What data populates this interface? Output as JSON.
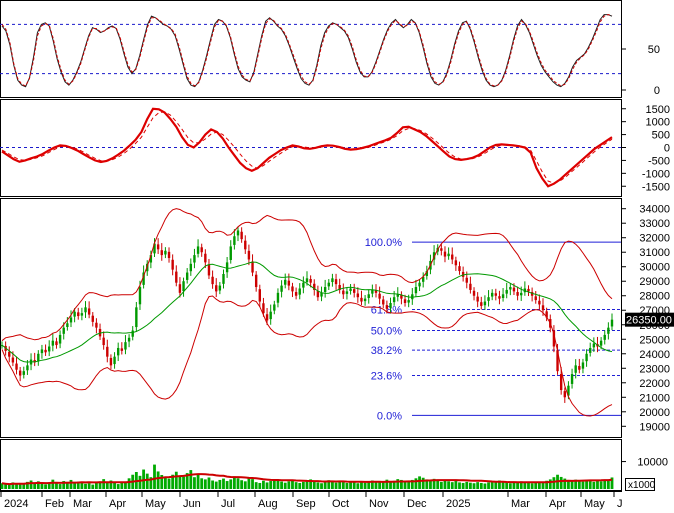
{
  "chart_data": [
    {
      "type": "line",
      "panel": "stochastic",
      "y_ticks": [
        "50",
        "0"
      ],
      "ylim": [
        0,
        100
      ],
      "reference_lines": [
        80,
        20
      ],
      "series": [
        {
          "values": [
            78,
            72,
            55,
            30,
            12,
            6,
            4,
            15,
            40,
            70,
            80,
            82,
            78,
            60,
            38,
            22,
            10,
            6,
            12,
            22,
            34,
            50,
            66,
            76,
            74,
            70,
            72,
            76,
            78,
            75,
            62,
            44,
            28,
            20,
            26,
            42,
            62,
            80,
            90,
            88,
            84,
            80,
            78,
            74,
            66,
            50,
            32,
            14,
            6,
            4,
            10,
            24,
            42,
            62,
            80,
            86,
            84,
            78,
            64,
            44,
            26,
            16,
            12,
            10,
            22,
            44,
            66,
            84,
            88,
            84,
            78,
            74,
            66,
            54,
            40,
            26,
            14,
            8,
            6,
            12,
            30,
            54,
            70,
            78,
            82,
            80,
            76,
            72,
            64,
            50,
            34,
            22,
            16,
            16,
            22,
            34,
            48,
            62,
            74,
            82,
            86,
            80,
            76,
            80,
            86,
            82,
            70,
            52,
            32,
            16,
            8,
            6,
            10,
            20,
            36,
            56,
            72,
            82,
            84,
            74,
            58,
            40,
            24,
            12,
            6,
            4,
            6,
            12,
            24,
            42,
            62,
            78,
            86,
            80,
            70,
            56,
            42,
            30,
            22,
            16,
            10,
            6,
            4,
            8,
            16,
            28,
            36,
            40,
            44,
            52,
            62,
            74,
            86,
            92,
            92,
            90
          ]
        },
        {
          "values": [
            80,
            74,
            58,
            32,
            14,
            7,
            5,
            14,
            36,
            66,
            78,
            81,
            79,
            63,
            41,
            25,
            12,
            7,
            11,
            20,
            32,
            48,
            64,
            75,
            75,
            71,
            72,
            75,
            77,
            76,
            64,
            47,
            31,
            22,
            25,
            39,
            59,
            77,
            88,
            88,
            85,
            81,
            78,
            75,
            68,
            53,
            35,
            17,
            8,
            5,
            9,
            22,
            39,
            59,
            77,
            85,
            84,
            79,
            66,
            47,
            29,
            18,
            13,
            11,
            20,
            41,
            63,
            81,
            87,
            85,
            79,
            75,
            68,
            56,
            43,
            29,
            17,
            10,
            7,
            11,
            27,
            50,
            67,
            76,
            81,
            80,
            77,
            73,
            66,
            53,
            37,
            24,
            17,
            16,
            21,
            32,
            46,
            60,
            72,
            80,
            85,
            81,
            77,
            79,
            84,
            82,
            72,
            55,
            35,
            19,
            10,
            7,
            9,
            18,
            33,
            53,
            69,
            80,
            83,
            76,
            61,
            43,
            27,
            14,
            7,
            5,
            6,
            11,
            22,
            39,
            59,
            75,
            84,
            81,
            72,
            59,
            45,
            33,
            24,
            18,
            12,
            8,
            5,
            7,
            14,
            25,
            34,
            39,
            43,
            50,
            60,
            71,
            83,
            90,
            92,
            91
          ]
        }
      ]
    },
    {
      "type": "line",
      "panel": "macd",
      "y_ticks": [
        "1500",
        "1000",
        "500",
        "0",
        "-500",
        "-1000",
        "-1500"
      ],
      "ylim": [
        -1800,
        1800
      ],
      "series": [
        {
          "values": [
            -150,
            -300,
            -450,
            -550,
            -500,
            -420,
            -350,
            -250,
            -120,
            0,
            80,
            60,
            -20,
            -120,
            -250,
            -380,
            -500,
            -560,
            -520,
            -420,
            -280,
            -120,
            80,
            300,
            600,
            1100,
            1500,
            1480,
            1350,
            1100,
            800,
            400,
            100,
            0,
            200,
            500,
            700,
            600,
            350,
            0,
            -300,
            -600,
            -800,
            -900,
            -800,
            -600,
            -400,
            -250,
            -100,
            0,
            80,
            40,
            -30,
            -50,
            -10,
            50,
            80,
            70,
            20,
            -50,
            -80,
            -60,
            -20,
            40,
            120,
            200,
            280,
            380,
            560,
            780,
            800,
            700,
            600,
            450,
            250,
            50,
            -150,
            -350,
            -450,
            -480,
            -450,
            -400,
            -300,
            -150,
            0,
            100,
            120,
            100,
            80,
            50,
            0,
            -200,
            -800,
            -1200,
            -1500,
            -1400,
            -1250,
            -1050,
            -850,
            -650,
            -450,
            -250,
            -50,
            100,
            250,
            400
          ]
        },
        {
          "values": [
            -100,
            -220,
            -360,
            -470,
            -500,
            -460,
            -400,
            -320,
            -200,
            -80,
            30,
            60,
            20,
            -60,
            -170,
            -300,
            -420,
            -510,
            -530,
            -470,
            -370,
            -230,
            -50,
            160,
            400,
            780,
            1150,
            1350,
            1380,
            1250,
            1000,
            700,
            380,
            180,
            180,
            330,
            520,
            600,
            500,
            280,
            20,
            -260,
            -520,
            -720,
            -800,
            -700,
            -530,
            -370,
            -220,
            -80,
            30,
            50,
            20,
            -10,
            -20,
            20,
            55,
            70,
            40,
            -10,
            -50,
            -60,
            -40,
            0,
            70,
            150,
            230,
            320,
            460,
            650,
            740,
            730,
            660,
            540,
            370,
            180,
            -20,
            -220,
            -370,
            -450,
            -460,
            -430,
            -360,
            -240,
            -100,
            30,
            90,
            100,
            90,
            65,
            25,
            -110,
            -520,
            -950,
            -1300,
            -1380,
            -1300,
            -1150,
            -950,
            -760,
            -560,
            -360,
            -160,
            20,
            170,
            320
          ]
        }
      ]
    },
    {
      "type": "candlestick",
      "panel": "price",
      "last_price_label": "26350.00",
      "ylim": [
        18400,
        34600
      ],
      "y_ticks": [
        34000,
        33000,
        32000,
        31000,
        30000,
        29000,
        28000,
        27000,
        26000,
        25000,
        24000,
        23000,
        22000,
        21000,
        20000,
        19000
      ],
      "fibonacci": [
        {
          "label": "100.0%",
          "value": 31700
        },
        {
          "label": "61.8%",
          "value": 27050
        },
        {
          "label": "50.0%",
          "value": 25600
        },
        {
          "label": "38.2%",
          "value": 24250
        },
        {
          "label": "23.6%",
          "value": 22500
        },
        {
          "label": "0.0%",
          "value": 19750
        }
      ],
      "close": [
        24600,
        24200,
        23800,
        23400,
        22900,
        22500,
        22800,
        23200,
        23600,
        23400,
        24000,
        24300,
        24100,
        24500,
        24900,
        24600,
        25300,
        25800,
        26100,
        26500,
        26900,
        26600,
        26800,
        27200,
        26700,
        26200,
        25800,
        25200,
        24600,
        23800,
        23200,
        23800,
        24400,
        24200,
        24800,
        25100,
        25600,
        27200,
        28600,
        29600,
        30200,
        30800,
        31600,
        31200,
        30800,
        31100,
        30600,
        29800,
        28900,
        28200,
        29000,
        29600,
        30200,
        30800,
        31400,
        31000,
        30300,
        29400,
        28800,
        28300,
        28700,
        29500,
        30300,
        31400,
        32100,
        32500,
        31900,
        31200,
        30500,
        29600,
        28600,
        27600,
        26800,
        26300,
        26900,
        27400,
        28200,
        28700,
        29100,
        28700,
        28300,
        28000,
        28500,
        28900,
        29200,
        28900,
        28400,
        27900,
        28200,
        28600,
        28900,
        29200,
        28800,
        28400,
        28100,
        28300,
        28500,
        28200,
        27900,
        27600,
        27800,
        28100,
        28400,
        28200,
        27800,
        27400,
        27100,
        27500,
        27900,
        28100,
        27800,
        27500,
        27700,
        28100,
        28600,
        28900,
        29300,
        29700,
        30400,
        31000,
        31300,
        31100,
        30700,
        30900,
        30500,
        30100,
        29700,
        29300,
        28900,
        28400,
        28000,
        27600,
        27300,
        27600,
        27900,
        28200,
        28000,
        27800,
        28100,
        28400,
        28600,
        28300,
        28000,
        28200,
        28500,
        28300,
        28000,
        27700,
        27400,
        27000,
        26500,
        25800,
        24500,
        22800,
        21500,
        21000,
        21800,
        22600,
        23200,
        22900,
        23400,
        24000,
        24400,
        24700,
        24500,
        24900,
        25300,
        25800,
        26350
      ]
    },
    {
      "type": "bar",
      "panel": "volume",
      "y_ticks": [
        "10000"
      ],
      "unit_label": "x1000",
      "ylim": [
        0,
        17500
      ],
      "values": [
        2100,
        1800,
        1500,
        2400,
        1700,
        2200,
        1900,
        2600,
        3100,
        2300,
        2800,
        2000,
        1700,
        2500,
        3400,
        2100,
        1800,
        2900,
        2600,
        3300,
        2200,
        2700,
        2400,
        1900,
        2100,
        1600,
        2300,
        2800,
        3600,
        2500,
        3100,
        2200,
        1800,
        2400,
        2700,
        3900,
        5200,
        6200,
        4800,
        7100,
        5600,
        4300,
        8900,
        6400,
        5100,
        4400,
        3800,
        5200,
        6300,
        4800,
        4500,
        5800,
        6900,
        4300,
        5500,
        3900,
        3500,
        4200,
        3100,
        2700,
        3300,
        3800,
        2900,
        3500,
        4600,
        3900,
        3200,
        2800,
        4100,
        3600,
        2500,
        2200,
        3000,
        2400,
        2900,
        3600,
        3100,
        2700,
        2300,
        2800,
        3300,
        2500,
        2200,
        2600,
        3000,
        3500,
        2800,
        2400,
        2100,
        2700,
        3200,
        2600,
        2300,
        2900,
        2500,
        2200,
        2700,
        2400,
        2100,
        2600,
        2300,
        2800,
        3100,
        2600,
        2400,
        2900,
        3400,
        2800,
        3000,
        3600,
        3300,
        2900,
        2700,
        3300,
        3900,
        4600,
        4100,
        3500,
        3200,
        3700,
        3000,
        2600,
        3100,
        2800,
        2500,
        2900,
        2400,
        2200,
        2600,
        2300,
        2100,
        2500,
        2200,
        2000,
        2400,
        2800,
        2600,
        3100,
        2700,
        2400,
        2100,
        2500,
        2300,
        2800,
        2600,
        2300,
        2100,
        2500,
        2200,
        2600,
        3000,
        3500,
        4300,
        5200,
        4400,
        3800,
        3200,
        2900,
        3400,
        3000,
        2700,
        3300,
        2900,
        2600,
        3100,
        2800,
        3300,
        3000,
        4200
      ]
    }
  ],
  "x_axis": {
    "labels": [
      "2024",
      "Feb",
      "Mar",
      "Apr",
      "May",
      "Jun",
      "Jul",
      "Aug",
      "Sep",
      "Oct",
      "Nov",
      "Dec",
      "2025",
      "Mar",
      "Apr",
      "May",
      "J"
    ]
  },
  "colors": {
    "panel_bg": "#ffffff",
    "grid_dashed": "#1a1acc",
    "stoch_k": "#222222",
    "stoch_d": "#cc0000",
    "macd": "#dd0000",
    "bollinger": "#cc0000",
    "ma": "#009900",
    "candle_up": "#009900",
    "candle_down": "#cc0000",
    "fib": "#1f1fd6",
    "volume_bar": "#00aa00",
    "volume_ma": "#cc0000",
    "last_price_bg": "#000000",
    "last_price_fg": "#ffffff"
  }
}
